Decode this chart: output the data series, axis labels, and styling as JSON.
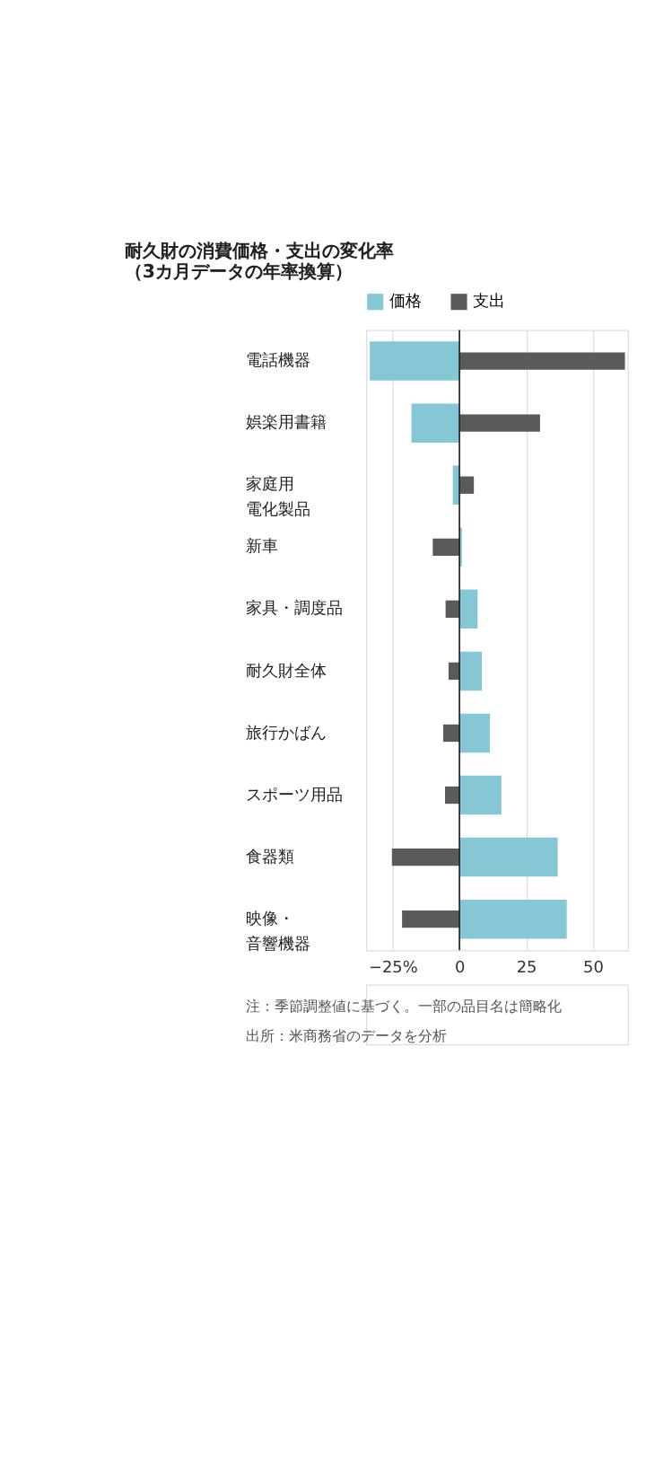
{
  "chart_data": {
    "type": "bar",
    "orientation": "horizontal",
    "title": "耐久財の消費価格・支出の変化率",
    "subtitle": "（3カ月データの年率換算）",
    "categories": [
      "電話機器",
      "娯楽用書籍",
      "家庭用電化製品",
      "新車",
      "家具・調度品",
      "耐久財全体",
      "旅行かばん",
      "スポーツ用品",
      "食器類",
      "映像・音響機器"
    ],
    "series": [
      {
        "name": "価格",
        "color": "#86c7d6",
        "values": [
          -33.6,
          -18,
          -2.5,
          0.9,
          6.8,
          8.4,
          11.4,
          15.7,
          36.8,
          40.2
        ]
      },
      {
        "name": "支出",
        "color": "#5a5a5a",
        "values": [
          62,
          30.2,
          5.4,
          -10,
          -5.2,
          -4.1,
          -6.1,
          -5.4,
          -25.3,
          -21.5
        ]
      }
    ],
    "xlim": [
      -35,
      63
    ],
    "xticks": [
      {
        "value": -25,
        "label": "−25%"
      },
      0,
      25,
      50
    ],
    "grid": "x",
    "legend": "top left",
    "ref_lines": [
      {
        "axis": "x",
        "value": 0,
        "color": "#222222"
      }
    ],
    "annotations": [
      "注：季節調整値に基づく。一部の品目名は簡略化",
      "出所：米商務省のデータを分析"
    ]
  }
}
